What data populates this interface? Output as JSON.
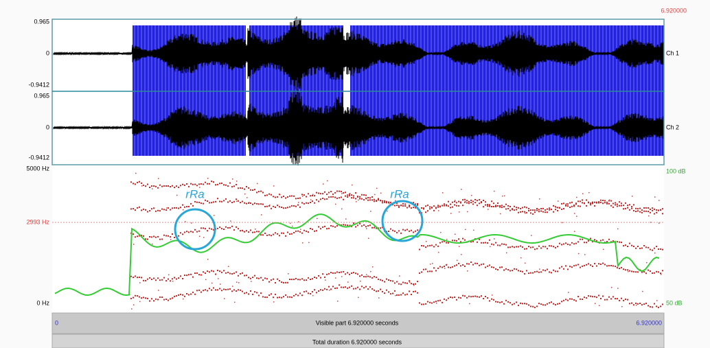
{
  "header": {
    "time_end": "6.920000"
  },
  "waveform": {
    "channels": [
      {
        "max": "0.965",
        "zero": "0",
        "min": "-0.9412",
        "label": "Ch 1"
      },
      {
        "max": "0.965",
        "zero": "0",
        "min": "-0.9412",
        "label": "Ch 2"
      }
    ]
  },
  "spectrogram": {
    "freq_max": "5000 Hz",
    "cursor_freq": "2993 Hz",
    "freq_min": "0 Hz",
    "intensity_max": "100 dB",
    "intensity_min": "50 dB"
  },
  "annotations": [
    "rRa",
    "rRa"
  ],
  "footer": {
    "start": "0",
    "visible": "Visible part 6.920000 seconds",
    "end": "6.920000",
    "total": "Total duration 6.920000 seconds"
  }
}
